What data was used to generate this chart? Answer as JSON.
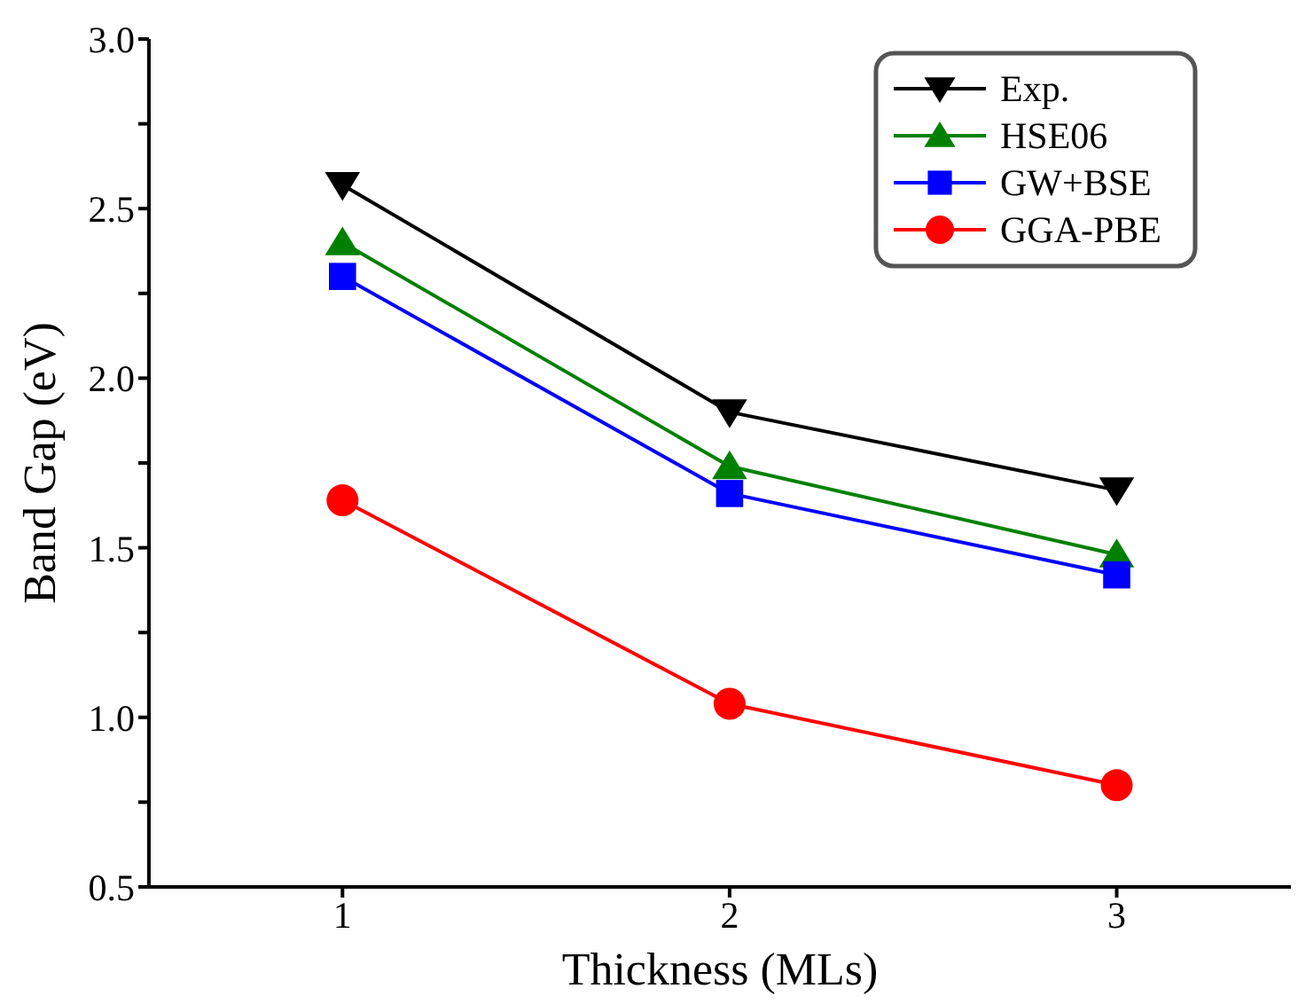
{
  "chart_data": {
    "type": "line",
    "xlabel": "Thickness (MLs)",
    "ylabel": "Band Gap (eV)",
    "x": [
      1,
      2,
      3
    ],
    "series": [
      {
        "name": "Exp.",
        "color": "#000000",
        "marker": "triangle-down",
        "values": [
          2.57,
          1.9,
          1.67
        ]
      },
      {
        "name": "HSE06",
        "color": "#008000",
        "marker": "triangle",
        "values": [
          2.4,
          1.74,
          1.48
        ]
      },
      {
        "name": "GW+BSE",
        "color": "#0000ff",
        "marker": "square",
        "values": [
          2.3,
          1.66,
          1.42
        ]
      },
      {
        "name": "GGA-PBE",
        "color": "#ff0000",
        "marker": "circle",
        "values": [
          1.64,
          1.04,
          0.8
        ]
      }
    ],
    "xlim": [
      0.5,
      3.45
    ],
    "xticks": [
      1,
      2,
      3
    ],
    "ylim": [
      0.5,
      3.0
    ],
    "yticks": [
      0.5,
      {
        "value": 0.75,
        "label": null
      },
      {
        "value": 1,
        "label": "1.0"
      },
      {
        "value": 1.25,
        "label": null
      },
      1.5,
      {
        "value": 1.75,
        "label": null
      },
      {
        "value": 2,
        "label": "2.0"
      },
      {
        "value": 2.25,
        "label": null
      },
      2.5,
      {
        "value": 2.75,
        "label": null
      },
      {
        "value": 3,
        "label": "3.0"
      }
    ],
    "grid": false,
    "legend": "top right",
    "line_style": "solid"
  }
}
